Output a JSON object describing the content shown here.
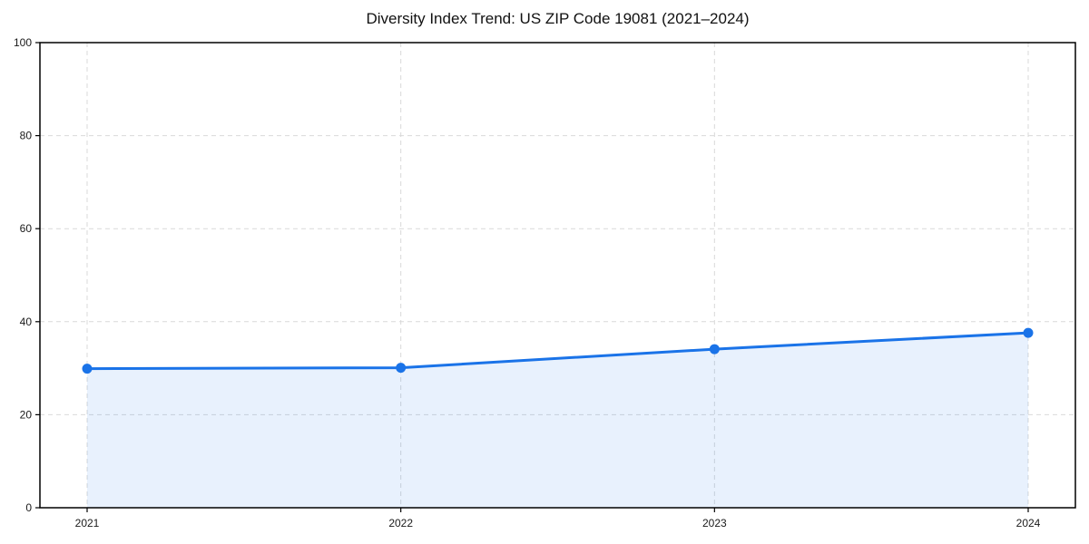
{
  "page": {
    "title": "Diversity Index Trend: US ZIP Code 19081 (2021–2024)"
  },
  "chart_data": {
    "type": "area",
    "title": "Diversity Index Trend: US ZIP Code 19081 (2021–2024)",
    "xlabel": "",
    "ylabel": "",
    "x": [
      "2021",
      "2022",
      "2023",
      "2024"
    ],
    "series": [
      {
        "name": "Diversity Index",
        "values": [
          29.9,
          30.1,
          34.1,
          37.6
        ]
      }
    ],
    "ylim": [
      0,
      100
    ],
    "yticks": [
      0,
      20,
      40,
      60,
      80,
      100
    ],
    "grid": true,
    "grid_style": "dashed",
    "legend_position": "none",
    "marker": "circle",
    "colors": {
      "line": "#1a73e8",
      "fill": "rgba(26,115,232,0.10)",
      "grid": "#d9d9d9",
      "axis": "#000000",
      "tick_label": "#1a1a1a",
      "background": "#ffffff"
    }
  }
}
